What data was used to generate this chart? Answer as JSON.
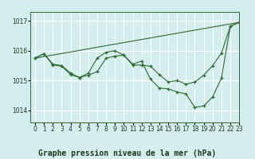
{
  "title": "Graphe pression niveau de la mer (hPa)",
  "xlim": [
    -0.5,
    23
  ],
  "ylim": [
    1013.6,
    1017.3
  ],
  "yticks": [
    1014,
    1015,
    1016,
    1017
  ],
  "xticks": [
    0,
    1,
    2,
    3,
    4,
    5,
    6,
    7,
    8,
    9,
    10,
    11,
    12,
    13,
    14,
    15,
    16,
    17,
    18,
    19,
    20,
    21,
    22,
    23
  ],
  "bg_color": "#d4eef0",
  "grid_color": "#ffffff",
  "line_color": "#2d6a2d",
  "lines": [
    {
      "x": [
        0,
        23
      ],
      "y": [
        1015.75,
        1016.95
      ],
      "marker": false
    },
    {
      "x": [
        0,
        1,
        2,
        3,
        4,
        5,
        6,
        7,
        8,
        9,
        10,
        11,
        12,
        13,
        14,
        15,
        16,
        17,
        18,
        19,
        20,
        21,
        22,
        23
      ],
      "y": [
        1015.75,
        1015.9,
        1015.55,
        1015.5,
        1015.25,
        1015.1,
        1015.25,
        1015.75,
        1015.95,
        1016.0,
        1015.85,
        1015.55,
        1015.65,
        1015.05,
        1014.75,
        1014.72,
        1014.62,
        1014.55,
        1014.1,
        1014.15,
        1014.45,
        1015.08,
        1016.82,
        1016.95
      ],
      "marker": true
    },
    {
      "x": [
        0,
        1,
        2,
        3,
        4,
        5,
        6,
        7,
        8,
        9,
        10,
        11,
        12,
        13,
        14,
        15,
        16,
        17,
        18,
        19,
        20,
        21,
        22,
        23
      ],
      "y": [
        1015.75,
        1015.9,
        1015.52,
        1015.48,
        1015.2,
        1015.1,
        1015.18,
        1015.3,
        1015.75,
        1015.82,
        1015.85,
        1015.52,
        1015.52,
        1015.48,
        1015.2,
        1014.95,
        1015.0,
        1014.88,
        1014.95,
        1015.18,
        1015.5,
        1015.92,
        1016.82,
        1016.95
      ],
      "marker": true
    }
  ],
  "title_fontsize": 7,
  "tick_fontsize": 5.5
}
